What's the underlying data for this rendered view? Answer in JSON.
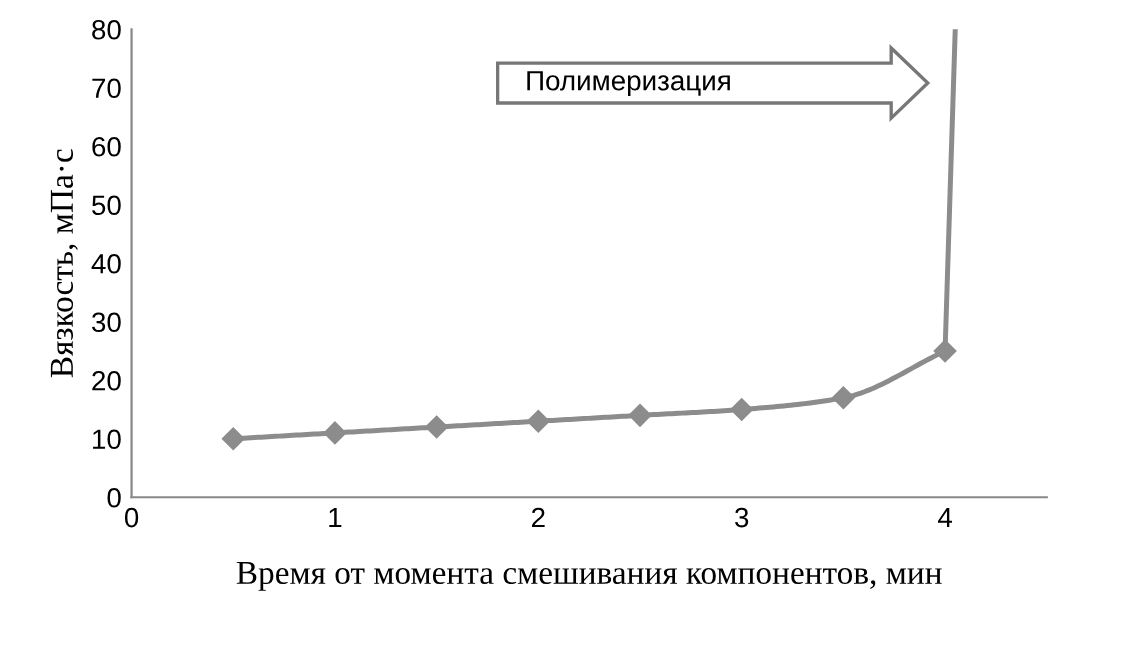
{
  "chart_data": {
    "type": "line",
    "xlabel": "Время от момента смешивания компонентов, мин",
    "ylabel": "Вязкость, мПа·с",
    "series": [
      {
        "x": [
          0.5,
          1,
          1.5,
          2,
          2.5,
          3,
          3.5,
          4
        ],
        "values": [
          10,
          11,
          12,
          13,
          14,
          15,
          17,
          25
        ],
        "color": "#8c8c8c",
        "marker": "diamond"
      },
      {
        "x": [
          4,
          4.05
        ],
        "values": [
          25,
          80
        ],
        "color": "#8c8c8c",
        "marker": "none"
      }
    ],
    "xlim": [
      0,
      4.5
    ],
    "xticks": [
      0,
      1,
      2,
      3,
      4
    ],
    "ylim": [
      0,
      80
    ],
    "yticks": [
      0,
      10,
      20,
      30,
      40,
      50,
      60,
      70,
      80
    ],
    "grid": false,
    "legend": false,
    "annotations": [
      "Полимеризация"
    ]
  }
}
